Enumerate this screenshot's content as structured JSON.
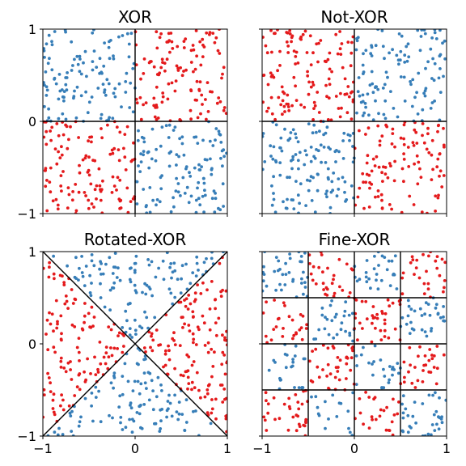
{
  "colors": {
    "red": "#e41a1c",
    "blue": "#377eb8"
  },
  "chart_data": [
    {
      "type": "scatter",
      "title": "XOR",
      "xlim": [
        -1,
        1
      ],
      "ylim": [
        -1,
        1
      ],
      "xticks": [],
      "yticks": [
        -1,
        0,
        1
      ],
      "xtick_labels": [],
      "ytick_labels": [
        "−1",
        "0",
        "1"
      ],
      "grid": false,
      "lines": [
        [
          [
            0,
            -1
          ],
          [
            0,
            1
          ]
        ],
        [
          [
            -1,
            0
          ],
          [
            1,
            0
          ]
        ]
      ],
      "class_rule": "sign(x*y) > 0 → red, else blue",
      "series": [
        {
          "color": "red",
          "n": 240
        },
        {
          "color": "blue",
          "n": 240
        }
      ]
    },
    {
      "type": "scatter",
      "title": "Not-XOR",
      "xlim": [
        -1,
        1
      ],
      "ylim": [
        -1,
        1
      ],
      "xticks": [],
      "yticks": [],
      "xtick_labels": [],
      "ytick_labels": [],
      "grid": false,
      "lines": [
        [
          [
            0,
            -1
          ],
          [
            0,
            1
          ]
        ],
        [
          [
            -1,
            0
          ],
          [
            1,
            0
          ]
        ]
      ],
      "class_rule": "sign(x*y) < 0 → red, else blue",
      "series": [
        {
          "color": "red",
          "n": 240
        },
        {
          "color": "blue",
          "n": 240
        }
      ]
    },
    {
      "type": "scatter",
      "title": "Rotated-XOR",
      "xlim": [
        -1,
        1
      ],
      "ylim": [
        -1,
        1
      ],
      "xticks": [
        -1,
        0,
        1
      ],
      "yticks": [
        -1,
        0,
        1
      ],
      "xtick_labels": [
        "−1",
        "0",
        "1"
      ],
      "ytick_labels": [
        "−1",
        "0",
        "1"
      ],
      "grid": false,
      "lines": [
        [
          [
            -1,
            -1
          ],
          [
            1,
            1
          ]
        ],
        [
          [
            -1,
            1
          ],
          [
            1,
            -1
          ]
        ]
      ],
      "class_rule": "|x| > |y| → red, else blue",
      "series": [
        {
          "color": "red",
          "n": 240
        },
        {
          "color": "blue",
          "n": 240
        }
      ]
    },
    {
      "type": "scatter",
      "title": "Fine-XOR",
      "xlim": [
        -1,
        1
      ],
      "ylim": [
        -1,
        1
      ],
      "xticks": [
        -1,
        0,
        1
      ],
      "yticks": [],
      "xtick_labels": [
        "−1",
        "0",
        "1"
      ],
      "ytick_labels": [],
      "grid": false,
      "lines": [
        [
          [
            -0.5,
            -1
          ],
          [
            -0.5,
            1
          ]
        ],
        [
          [
            0,
            -1
          ],
          [
            0,
            1
          ]
        ],
        [
          [
            0.5,
            -1
          ],
          [
            0.5,
            1
          ]
        ],
        [
          [
            -1,
            -0.5
          ],
          [
            1,
            -0.5
          ]
        ],
        [
          [
            -1,
            0
          ],
          [
            1,
            0
          ]
        ],
        [
          [
            -1,
            0.5
          ],
          [
            1,
            0.5
          ]
        ]
      ],
      "class_rule": "4x4 checkerboard of 0.5 cells, top-left cell blue",
      "series": [
        {
          "color": "red",
          "n": 240
        },
        {
          "color": "blue",
          "n": 240
        }
      ]
    }
  ]
}
